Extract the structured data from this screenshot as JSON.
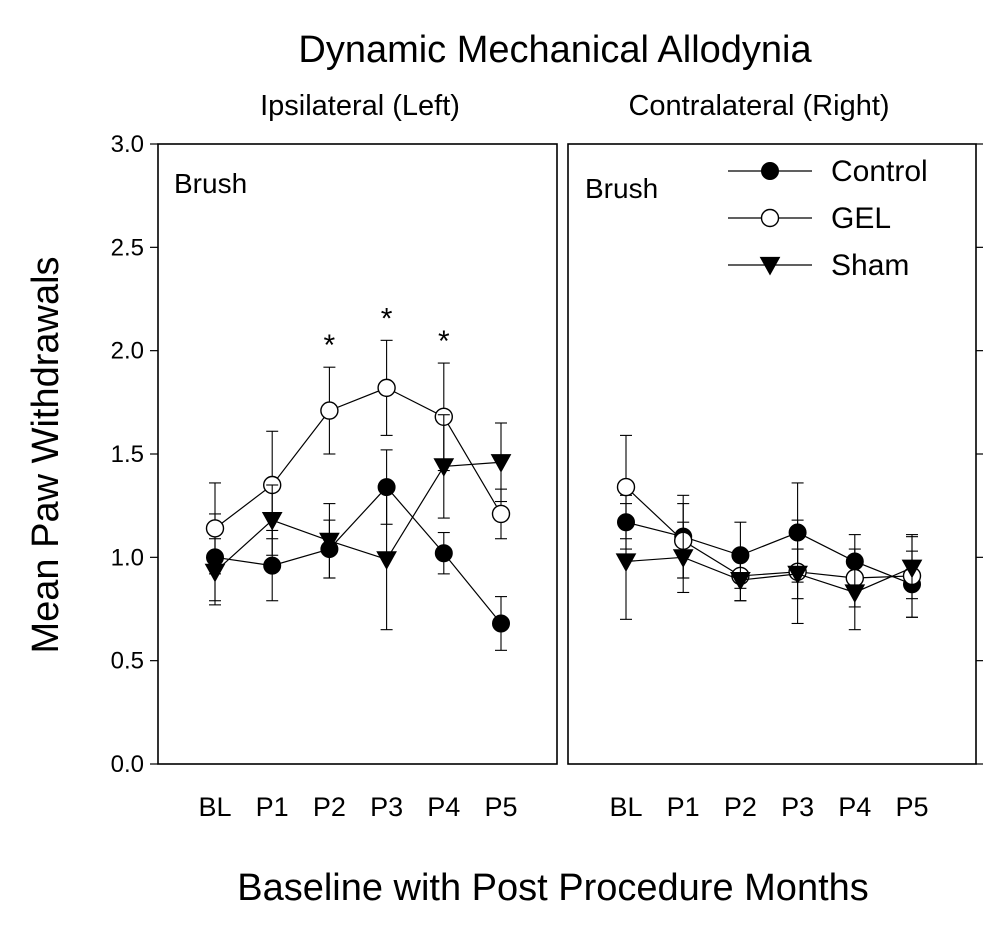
{
  "figure": {
    "title": "Dynamic Mechanical Allodynia",
    "ylabel": "Mean Paw Withdrawals",
    "xlabel": "Baseline with Post Procedure Months"
  },
  "legend": {
    "placement": "top-right of right panel",
    "entries": [
      {
        "name": "Control",
        "marker": "filled-circle"
      },
      {
        "name": "GEL",
        "marker": "open-circle"
      },
      {
        "name": "Sham",
        "marker": "filled-down-triangle"
      }
    ]
  },
  "colors": {
    "ink": "#000000",
    "background": "#ffffff"
  },
  "chart_data": [
    {
      "type": "line",
      "panel_title": "Ipsilateral (Left)",
      "annotation": "Brush",
      "categories": [
        "BL",
        "P1",
        "P2",
        "P3",
        "P4",
        "P5"
      ],
      "ylim": [
        0,
        3
      ],
      "yticks": [
        "0.0",
        "0.5",
        "1.0",
        "1.5",
        "2.0",
        "2.5",
        "3.0"
      ],
      "grid": false,
      "series": [
        {
          "name": "Control",
          "values": [
            1.0,
            0.96,
            1.04,
            1.34,
            1.02,
            0.68
          ],
          "errors": [
            0.21,
            0.17,
            0.14,
            0.18,
            0.1,
            0.13
          ]
        },
        {
          "name": "GEL",
          "values": [
            1.14,
            1.35,
            1.71,
            1.82,
            1.68,
            1.21
          ],
          "errors": [
            0.22,
            0.26,
            0.21,
            0.23,
            0.26,
            0.12
          ]
        },
        {
          "name": "Sham",
          "values": [
            0.93,
            1.18,
            1.08,
            0.99,
            1.44,
            1.46
          ],
          "errors": [
            0.16,
            0.17,
            0.18,
            0.34,
            0.25,
            0.19
          ]
        }
      ],
      "significance": [
        {
          "category": "P2",
          "label": "*"
        },
        {
          "category": "P3",
          "label": "*"
        },
        {
          "category": "P4",
          "label": "*"
        }
      ]
    },
    {
      "type": "line",
      "panel_title": "Contralateral (Right)",
      "annotation": "Brush",
      "categories": [
        "BL",
        "P1",
        "P2",
        "P3",
        "P4",
        "P5"
      ],
      "ylim": [
        0,
        3
      ],
      "grid": false,
      "series": [
        {
          "name": "Control",
          "values": [
            1.17,
            1.1,
            1.01,
            1.12,
            0.98,
            0.87
          ],
          "errors": [
            0.13,
            0.2,
            0.16,
            0.24,
            0.13,
            0.16
          ]
        },
        {
          "name": "GEL",
          "values": [
            1.34,
            1.08,
            0.91,
            0.93,
            0.9,
            0.91
          ],
          "errors": [
            0.25,
            0.18,
            0.12,
            0.25,
            0.14,
            0.2
          ]
        },
        {
          "name": "Sham",
          "values": [
            0.98,
            1.0,
            0.89,
            0.92,
            0.83,
            0.95
          ],
          "errors": [
            0.28,
            0.17,
            0.1,
            0.12,
            0.18,
            0.15
          ]
        }
      ]
    }
  ]
}
